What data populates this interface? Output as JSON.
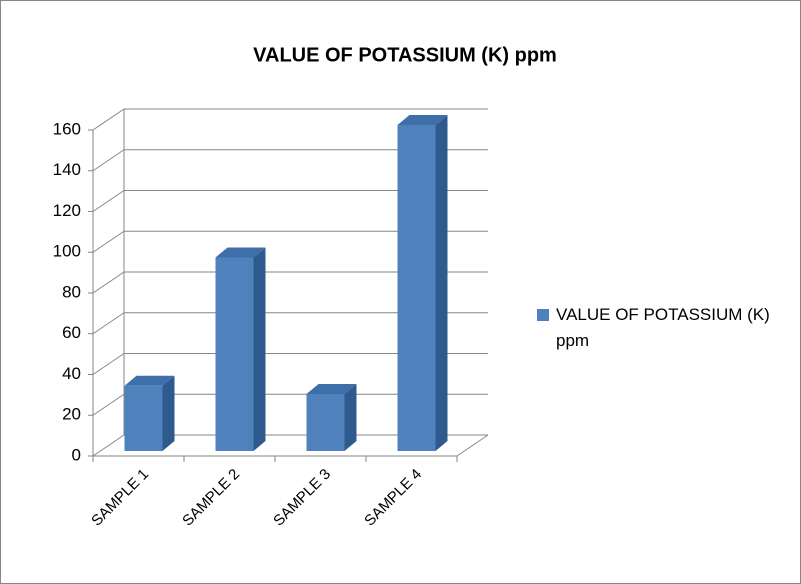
{
  "chart_data": {
    "type": "bar3d",
    "title": "VALUE OF POTASSIUM (K) ppm",
    "categories": [
      "SAMPLE 1",
      "SAMPLE 2",
      "SAMPLE 3",
      "SAMPLE 4"
    ],
    "series": [
      {
        "name": "VALUE OF POTASSIUM (K) ppm",
        "color": "#4f81bd",
        "values": [
          32,
          95,
          28,
          160
        ]
      }
    ],
    "ylim": [
      0,
      160
    ],
    "yticks": [
      0,
      20,
      40,
      60,
      80,
      100,
      120,
      140,
      160
    ],
    "grid": true,
    "legend": "right"
  }
}
